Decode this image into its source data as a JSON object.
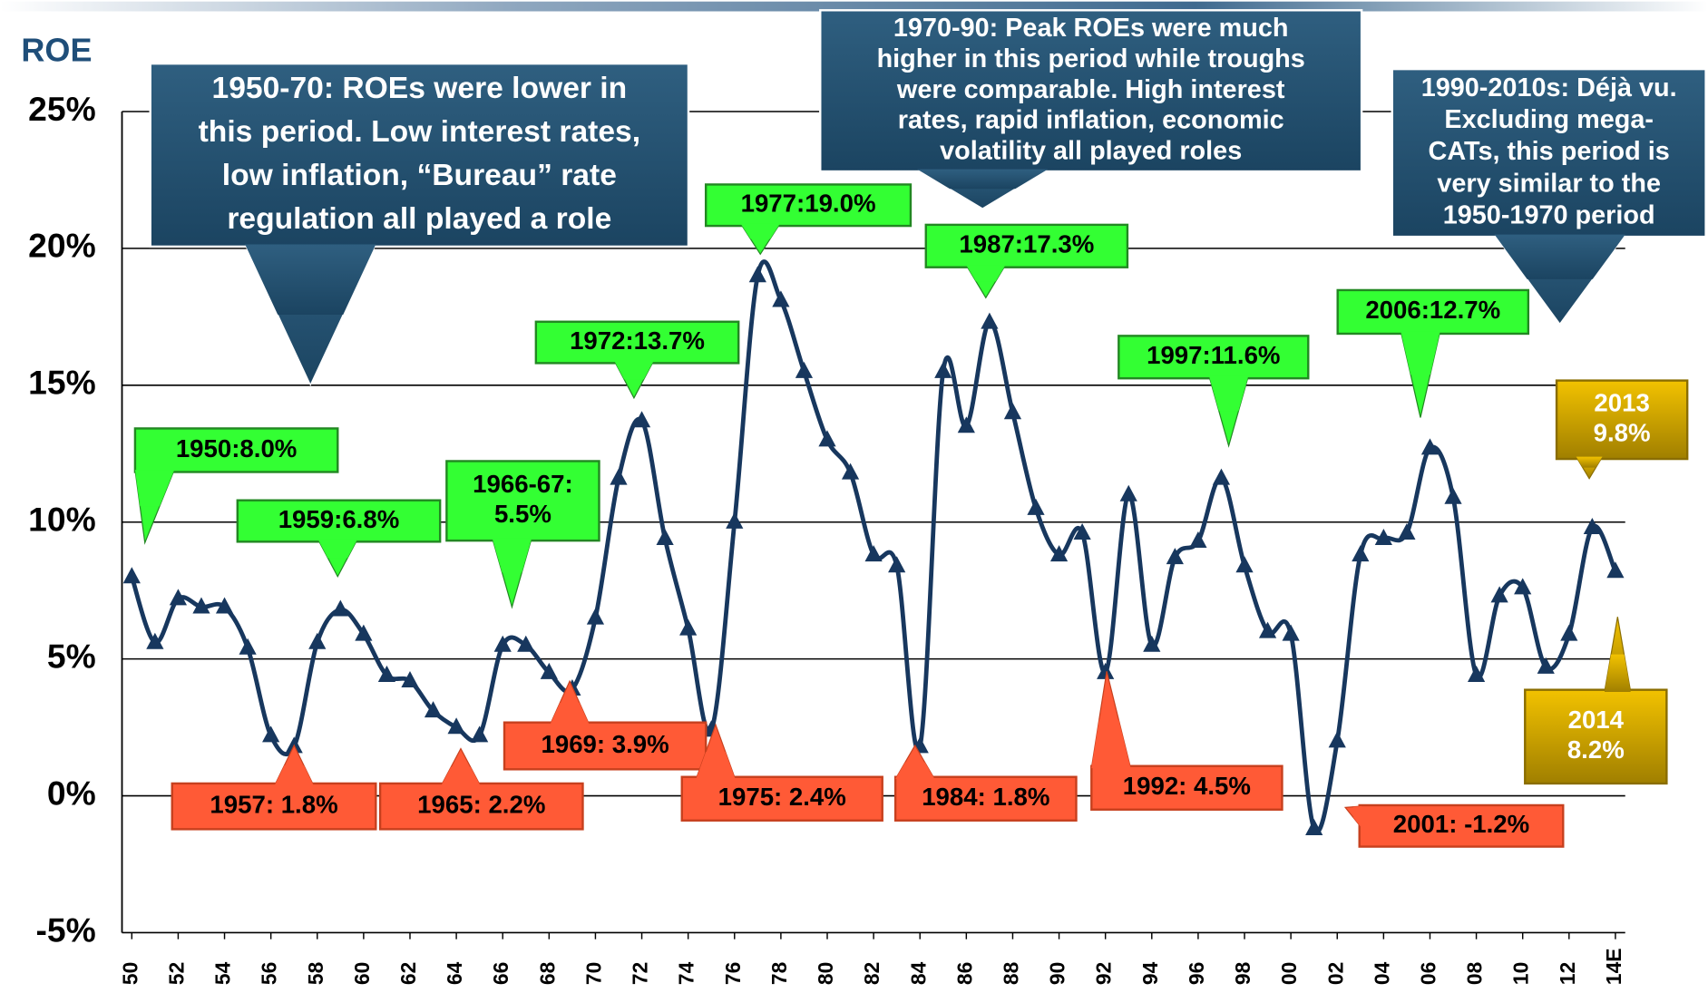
{
  "chart_data": {
    "type": "line",
    "y_label": "ROE",
    "color": "#17375e",
    "grid": true,
    "categories": [
      "50",
      null,
      "52",
      null,
      "54",
      null,
      "56",
      null,
      "58",
      null,
      "60",
      null,
      "62",
      null,
      "64",
      null,
      "66",
      null,
      "68",
      null,
      "70",
      null,
      "72",
      null,
      "74",
      null,
      "76",
      null,
      "78",
      null,
      "80",
      null,
      "82",
      null,
      "84",
      null,
      "86",
      null,
      "88",
      null,
      "90",
      null,
      "92",
      null,
      "94",
      null,
      "96",
      null,
      "98",
      null,
      "00",
      null,
      "02",
      null,
      "04",
      null,
      "06",
      null,
      "08",
      null,
      "10",
      null,
      "12",
      null,
      "14E"
    ],
    "values": [
      8.0,
      5.6,
      7.2,
      6.9,
      6.9,
      5.4,
      2.2,
      1.8,
      5.6,
      6.8,
      5.9,
      4.4,
      4.2,
      3.1,
      2.5,
      2.2,
      5.5,
      5.5,
      4.5,
      3.9,
      6.5,
      11.6,
      13.7,
      9.4,
      6.1,
      2.4,
      10.0,
      19.0,
      18.1,
      15.5,
      13.0,
      11.8,
      8.8,
      8.4,
      1.8,
      15.5,
      13.5,
      17.3,
      14.0,
      10.5,
      8.8,
      9.6,
      4.5,
      11.0,
      5.5,
      8.7,
      9.3,
      11.6,
      8.4,
      6.0,
      5.9,
      -1.2,
      2.0,
      8.8,
      9.4,
      9.6,
      12.7,
      10.9,
      4.4,
      7.3,
      7.6,
      4.7,
      5.9,
      9.8,
      8.2
    ],
    "ylim": [
      -5,
      25
    ],
    "yticks": [
      {
        "value": -5,
        "label": "-5%"
      },
      {
        "value": 0,
        "label": "0%"
      },
      {
        "value": 5,
        "label": "5%"
      },
      {
        "value": 10,
        "label": "10%"
      },
      {
        "value": 15,
        "label": "15%"
      },
      {
        "value": 20,
        "label": "20%"
      },
      {
        "value": 25,
        "label": "25%"
      }
    ],
    "notes": [
      {
        "lines": [
          "1950-70: ROEs were lower in",
          "this period.  Low interest rates,",
          "low inflation, “Bureau” rate",
          "regulation all played a role"
        ]
      },
      {
        "lines": [
          "1970-90: Peak ROEs were much",
          "higher in this period while troughs",
          "were comparable.  High interest",
          "rates, rapid inflation, economic",
          "volatility all played roles"
        ]
      },
      {
        "lines": [
          "1990-2010s: Déjà vu.",
          "Excluding mega-",
          "CATs, this period is",
          "very similar to the",
          "1950-1970 period"
        ]
      }
    ],
    "peak_labels": [
      {
        "lines": [
          "1950:8.0%"
        ]
      },
      {
        "lines": [
          "1959:6.8%"
        ]
      },
      {
        "lines": [
          "1966-67:",
          "5.5%"
        ]
      },
      {
        "lines": [
          "1972:13.7%"
        ]
      },
      {
        "lines": [
          "1977:19.0%"
        ]
      },
      {
        "lines": [
          "1987:17.3%"
        ]
      },
      {
        "lines": [
          "1997:11.6%"
        ]
      },
      {
        "lines": [
          "2006:12.7%"
        ]
      }
    ],
    "trough_labels": [
      {
        "lines": [
          "1957: 1.8%"
        ]
      },
      {
        "lines": [
          "1965: 2.2%"
        ]
      },
      {
        "lines": [
          "1969: 3.9%"
        ]
      },
      {
        "lines": [
          "1975: 2.4%"
        ]
      },
      {
        "lines": [
          "1984: 1.8%"
        ]
      },
      {
        "lines": [
          "1992: 4.5%"
        ]
      },
      {
        "lines": [
          "2001: -1.2%"
        ]
      }
    ],
    "recent_labels": [
      {
        "lines": [
          "2013",
          "9.8%"
        ]
      },
      {
        "lines": [
          "2014",
          "8.2%"
        ]
      }
    ]
  }
}
